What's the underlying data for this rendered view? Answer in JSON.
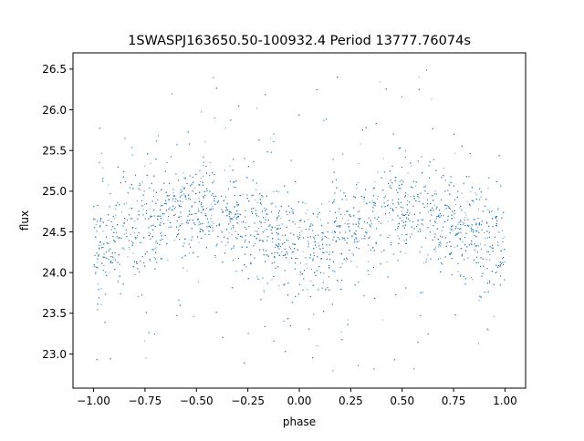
{
  "chart_data": {
    "type": "scatter",
    "title": "1SWASPJ163650.50-100932.4 Period 13777.76074s",
    "xlabel": "phase",
    "ylabel": "flux",
    "xlim": [
      -1.1,
      1.1
    ],
    "ylim": [
      22.58,
      26.7
    ],
    "xticks": [
      -1.0,
      -0.75,
      -0.5,
      -0.25,
      0.0,
      0.25,
      0.5,
      0.75,
      1.0
    ],
    "xtick_labels": [
      "−1.00",
      "−0.75",
      "−0.50",
      "−0.25",
      "0.00",
      "0.25",
      "0.50",
      "0.75",
      "1.00"
    ],
    "yticks": [
      23.0,
      23.5,
      24.0,
      24.5,
      25.0,
      25.5,
      26.0,
      26.5
    ],
    "ytick_labels": [
      "23.0",
      "23.5",
      "24.0",
      "24.5",
      "25.0",
      "25.5",
      "26.0",
      "26.5"
    ],
    "grid": false,
    "marker_color": "#1f77b4",
    "series": [
      {
        "phase_range": [
          -1.0,
          1.0
        ],
        "trend": {
          "x": [
            -1.0,
            -0.75,
            -0.5,
            -0.25,
            0.0,
            0.25,
            0.5,
            0.75,
            1.0
          ],
          "y": [
            24.32,
            24.6,
            24.82,
            24.65,
            24.3,
            24.55,
            24.82,
            24.62,
            24.3
          ]
        },
        "core_spread": 0.28,
        "outlier_range": [
          22.75,
          26.5
        ]
      }
    ]
  }
}
